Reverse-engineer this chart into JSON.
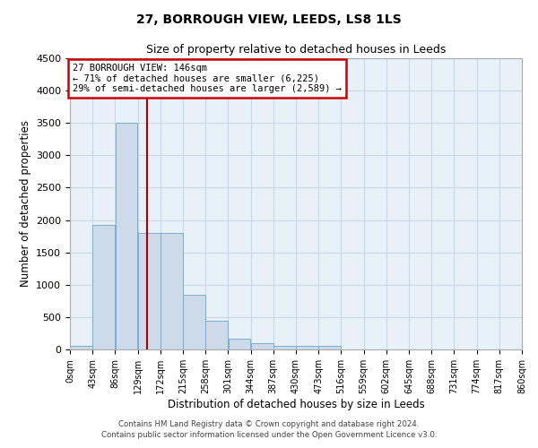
{
  "title": "27, BORROUGH VIEW, LEEDS, LS8 1LS",
  "subtitle": "Size of property relative to detached houses in Leeds",
  "xlabel": "Distribution of detached houses by size in Leeds",
  "ylabel": "Number of detached properties",
  "bar_color": "#ccdaea",
  "bar_edgecolor": "#7aadd4",
  "grid_color": "#c8d8e8",
  "background_color": "#e8f0f8",
  "vline_x": 146,
  "vline_color": "#aa0000",
  "annotation_text": "27 BORROUGH VIEW: 146sqm\n← 71% of detached houses are smaller (6,225)\n29% of semi-detached houses are larger (2,589) →",
  "annotation_box_edgecolor": "#cc0000",
  "footer_line1": "Contains HM Land Registry data © Crown copyright and database right 2024.",
  "footer_line2": "Contains public sector information licensed under the Open Government Licence v3.0.",
  "bin_edges": [
    0,
    43,
    86,
    129,
    172,
    215,
    258,
    301,
    344,
    387,
    430,
    473,
    516,
    559,
    602,
    645,
    688,
    731,
    774,
    817,
    860
  ],
  "bar_heights": [
    50,
    1920,
    3500,
    1800,
    1800,
    840,
    450,
    165,
    100,
    60,
    55,
    50,
    0,
    0,
    0,
    0,
    0,
    0,
    0,
    0
  ],
  "ylim": [
    0,
    4500
  ],
  "tick_labels": [
    "0sqm",
    "43sqm",
    "86sqm",
    "129sqm",
    "172sqm",
    "215sqm",
    "258sqm",
    "301sqm",
    "344sqm",
    "387sqm",
    "430sqm",
    "473sqm",
    "516sqm",
    "559sqm",
    "602sqm",
    "645sqm",
    "688sqm",
    "731sqm",
    "774sqm",
    "817sqm",
    "860sqm"
  ]
}
